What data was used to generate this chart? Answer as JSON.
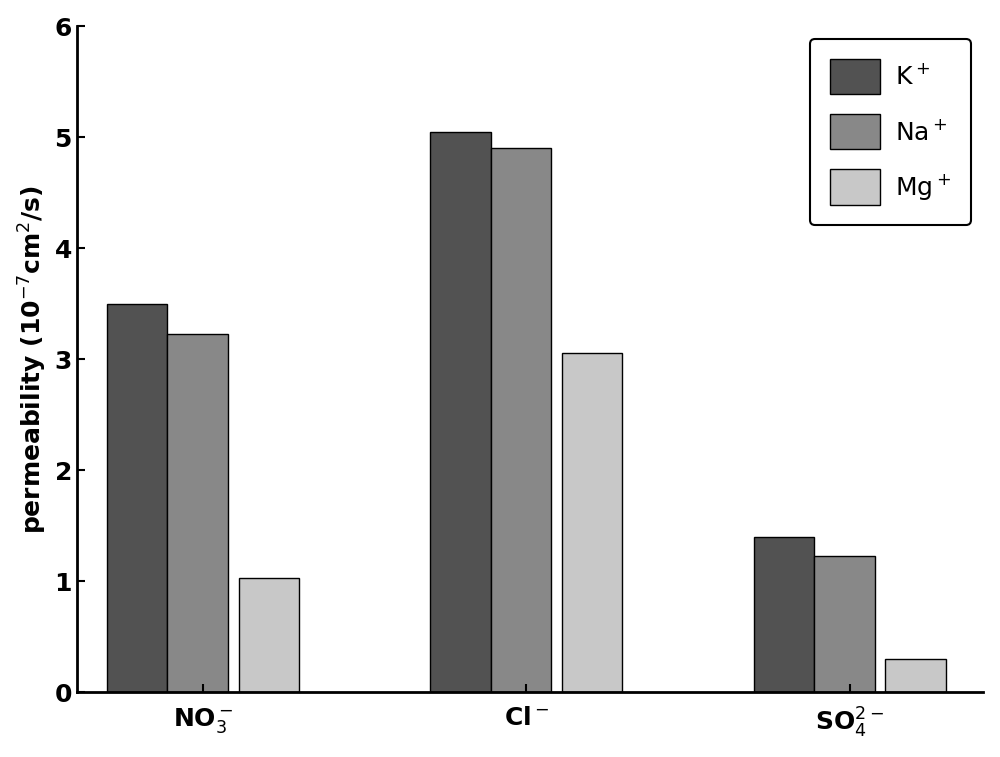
{
  "series": {
    "K+": [
      3.5,
      5.05,
      1.4
    ],
    "Na+": [
      3.23,
      4.9,
      1.23
    ],
    "Mg+": [
      1.03,
      3.06,
      0.3
    ]
  },
  "colors": {
    "K+": "#525252",
    "Na+": "#888888",
    "Mg+": "#c8c8c8"
  },
  "legend_labels": [
    "K$^+$",
    "Na$^+$",
    "Mg$^+$"
  ],
  "ylabel": "permeability (10$^{-7}$cm$^2$/s)",
  "ylim": [
    0,
    6
  ],
  "yticks": [
    0,
    1,
    2,
    3,
    4,
    5,
    6
  ],
  "bar_width": 0.28,
  "group_positions": [
    0.5,
    2.0,
    3.5
  ],
  "xtick_labels": [
    "NO$_3^-$",
    "Cl$^-$",
    "SO$_4^{2-}$"
  ],
  "figsize": [
    10.0,
    7.57
  ],
  "dpi": 100,
  "background_color": "#ffffff",
  "edge_color": "#000000",
  "edge_linewidth": 1.0,
  "tick_fontsize": 18,
  "label_fontsize": 18,
  "legend_fontsize": 18,
  "legend_loc": "upper right",
  "spine_linewidth": 2.0
}
